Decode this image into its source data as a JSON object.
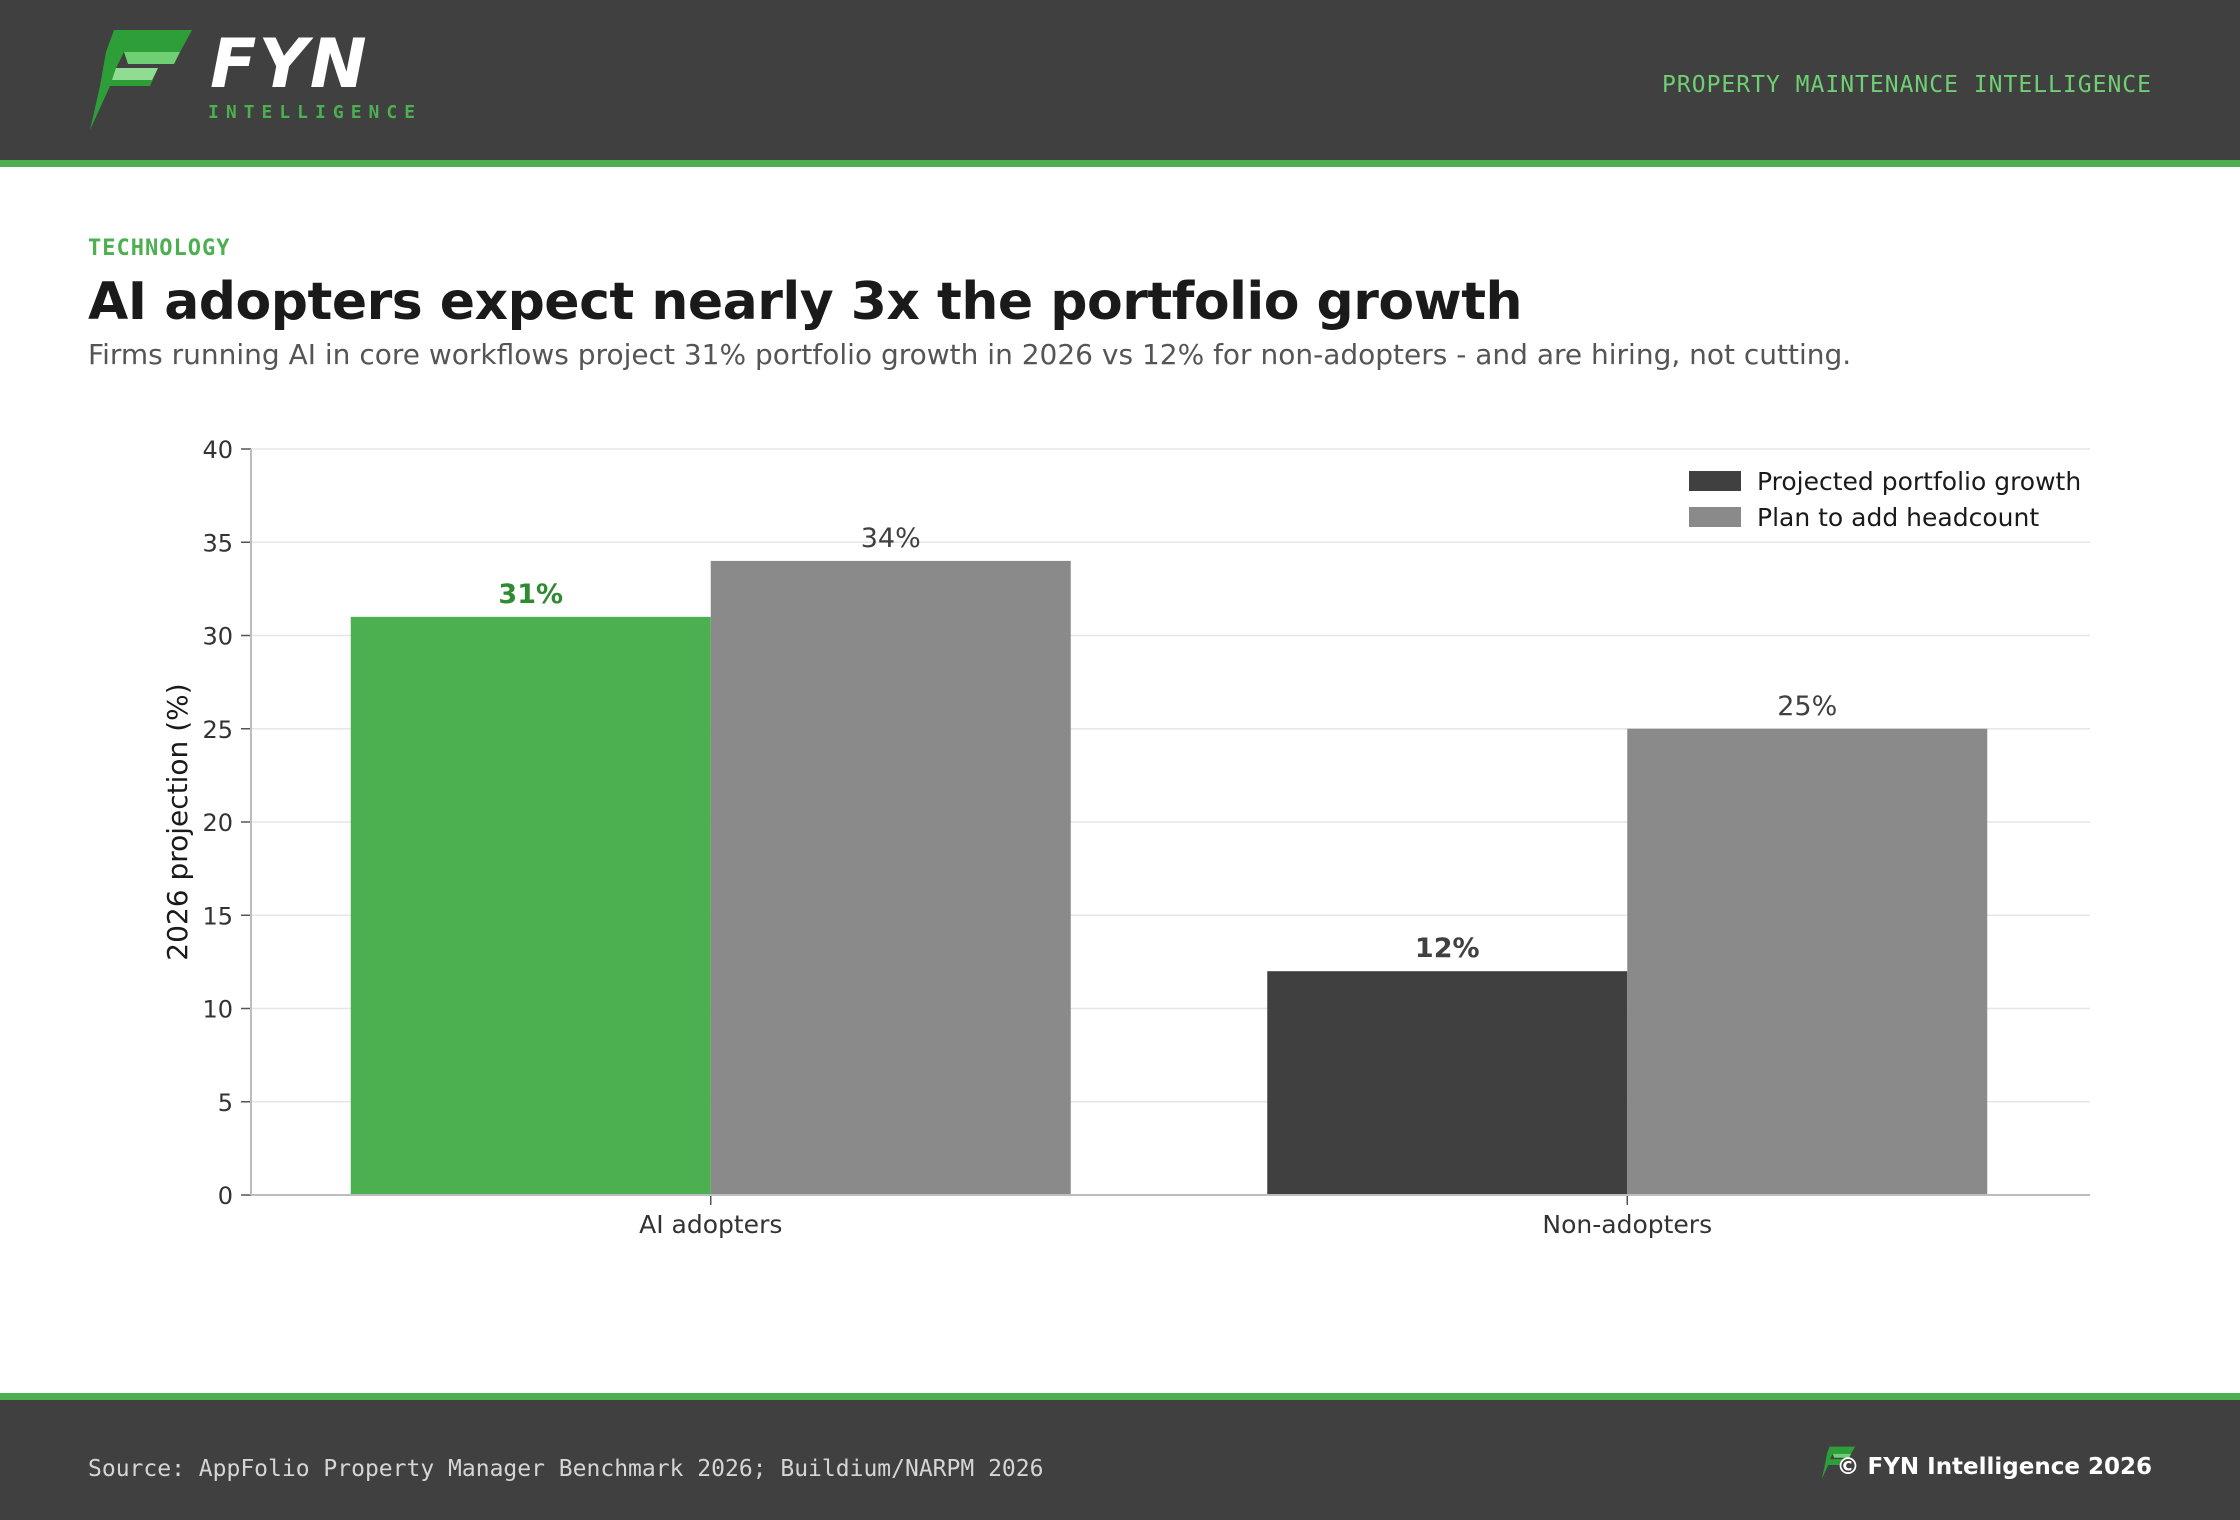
{
  "header": {
    "brand": "FYN",
    "brand_sub": "INTELLIGENCE",
    "tagline": "PROPERTY MAINTENANCE INTELLIGENCE",
    "logo_icon": "fyn-logo-icon"
  },
  "eyebrow": "TECHNOLOGY",
  "title": "AI adopters expect nearly 3x the portfolio growth",
  "subtitle": "Firms running AI in core workflows project 31% portfolio growth in 2026 vs 12% for non-adopters - and are hiring, not cutting.",
  "chart_data": {
    "type": "bar",
    "categories": [
      "AI adopters",
      "Non-adopters"
    ],
    "series": [
      {
        "name": "Projected portfolio growth",
        "values": [
          31,
          12
        ],
        "labels": [
          "31%",
          "12%"
        ],
        "color": "#404040",
        "highlight_color": "#4caf50"
      },
      {
        "name": "Plan to add headcount",
        "values": [
          34,
          25
        ],
        "labels": [
          "34%",
          "25%"
        ],
        "color": "#8a8a8a"
      }
    ],
    "ylabel": "2026 projection (%)",
    "xlabel": "",
    "ylim": [
      0,
      40
    ],
    "yticks": [
      0,
      5,
      10,
      15,
      20,
      25,
      30,
      35,
      40
    ],
    "grid": true,
    "legend": "top-right",
    "colors": {
      "accent": "#4caf50",
      "accent_label": "#2e8b32",
      "dark": "#404040",
      "gray": "#8a8a8a"
    }
  },
  "footer": {
    "source": "Source: AppFolio Property Manager Benchmark 2026; Buildium/NARPM 2026",
    "copyright": "© FYN Intelligence 2026"
  }
}
